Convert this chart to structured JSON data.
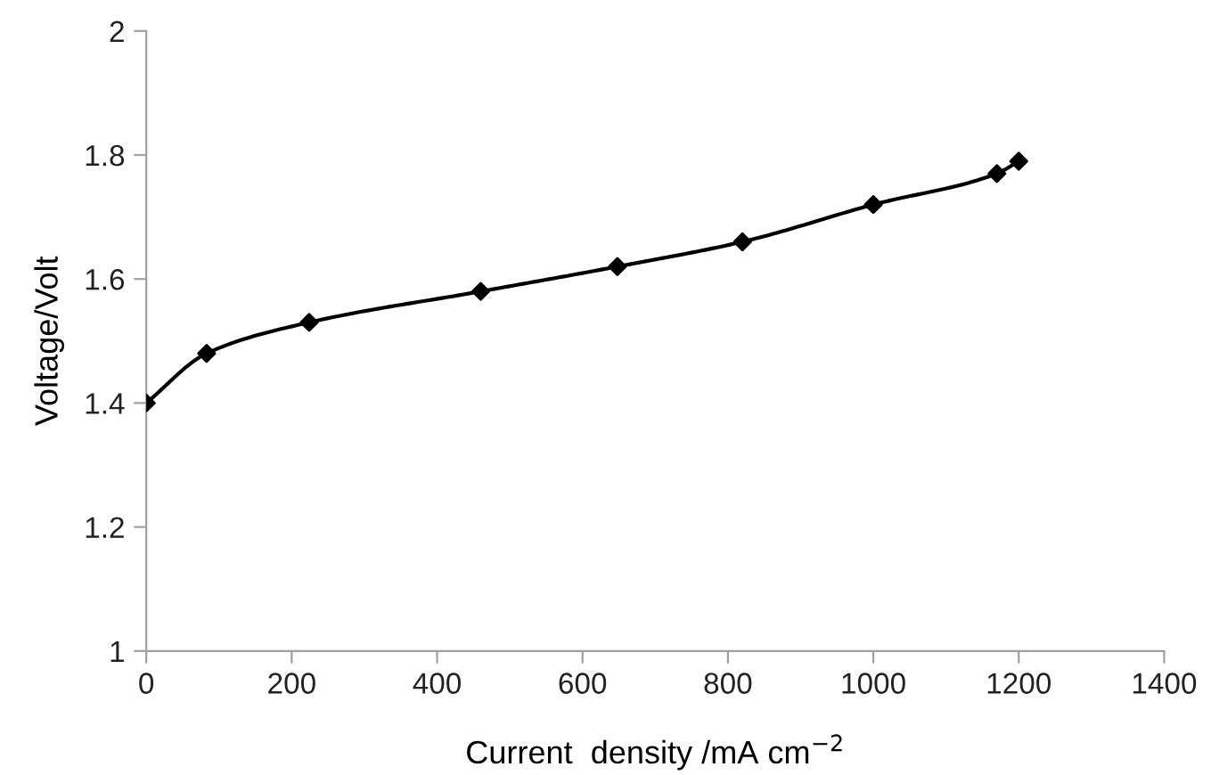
{
  "chart_data": {
    "type": "line",
    "xlabel": "Current  density /mA cm$^{−2}$",
    "ylabel": "Voltage/Volt",
    "x": [
      0,
      83,
      224,
      460,
      648,
      820,
      1000,
      1170,
      1200
    ],
    "series": [
      {
        "color": "#000000",
        "values": [
          1.4,
          1.48,
          1.53,
          1.58,
          1.62,
          1.66,
          1.72,
          1.77,
          1.79
        ]
      }
    ],
    "xlim": [
      0,
      1400
    ],
    "xticks": [
      0,
      200,
      400,
      600,
      800,
      1000,
      1200,
      1400
    ],
    "ylim": [
      1,
      2
    ],
    "yticks": [
      1,
      1.2,
      1.4,
      1.6,
      1.8,
      2
    ],
    "grid": false,
    "legend": false,
    "marker": "diamond",
    "line_style": "solid"
  }
}
